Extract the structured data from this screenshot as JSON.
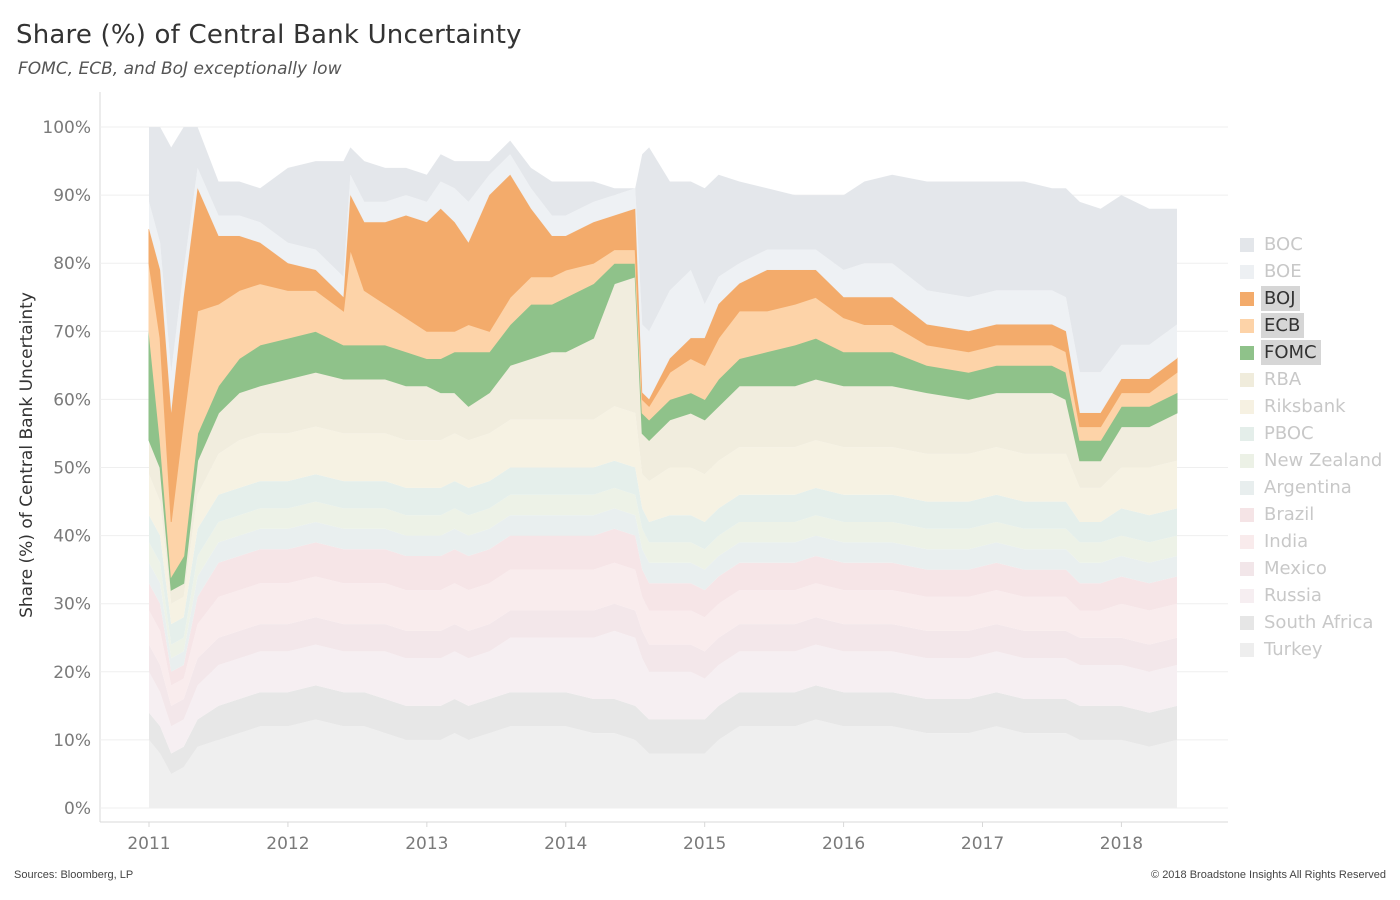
{
  "chart_data": {
    "type": "area",
    "stacked": true,
    "title": "Share (%) of Central Bank Uncertainty",
    "subtitle": "FOMC, ECB, and BoJ exceptionally low",
    "ylabel": "Share (%) of Central Bank Uncertainty",
    "xlabel": "",
    "ylim": [
      0,
      100
    ],
    "xlim": [
      2011.0,
      2018.4
    ],
    "grid": true,
    "legend_position": "right",
    "y_ticks": [
      "0%",
      "10%",
      "20%",
      "30%",
      "40%",
      "50%",
      "60%",
      "70%",
      "80%",
      "90%",
      "100%"
    ],
    "x_ticks": [
      "2011",
      "2012",
      "2013",
      "2014",
      "2015",
      "2016",
      "2017",
      "2018"
    ],
    "x": [
      2011.0,
      2011.08,
      2011.16,
      2011.25,
      2011.35,
      2011.5,
      2011.65,
      2011.8,
      2012.0,
      2012.2,
      2012.4,
      2012.45,
      2012.55,
      2012.7,
      2012.85,
      2013.0,
      2013.1,
      2013.2,
      2013.3,
      2013.45,
      2013.6,
      2013.75,
      2013.9,
      2014.0,
      2014.2,
      2014.35,
      2014.5,
      2014.55,
      2014.6,
      2014.75,
      2014.9,
      2015.0,
      2015.1,
      2015.25,
      2015.45,
      2015.65,
      2015.8,
      2016.0,
      2016.15,
      2016.35,
      2016.6,
      2016.9,
      2017.1,
      2017.3,
      2017.5,
      2017.6,
      2017.7,
      2017.85,
      2018.0,
      2018.2,
      2018.4
    ],
    "series": [
      {
        "name": "Turkey",
        "values": [
          10,
          8,
          5,
          6,
          9,
          10,
          11,
          12,
          12,
          13,
          12,
          12,
          12,
          11,
          10,
          10,
          10,
          11,
          10,
          11,
          12,
          12,
          12,
          12,
          11,
          11,
          10,
          9,
          8,
          8,
          8,
          8,
          10,
          12,
          12,
          12,
          13,
          12,
          12,
          12,
          11,
          11,
          12,
          11,
          11,
          11,
          10,
          10,
          10,
          9,
          10
        ]
      },
      {
        "name": "South Africa",
        "values": [
          4,
          4,
          3,
          3,
          4,
          5,
          5,
          5,
          5,
          5,
          5,
          5,
          5,
          5,
          5,
          5,
          5,
          5,
          5,
          5,
          5,
          5,
          5,
          5,
          5,
          5,
          5,
          5,
          5,
          5,
          5,
          5,
          5,
          5,
          5,
          5,
          5,
          5,
          5,
          5,
          5,
          5,
          5,
          5,
          5,
          5,
          5,
          5,
          5,
          5,
          5
        ]
      },
      {
        "name": "Russia",
        "values": [
          6,
          5,
          4,
          4,
          5,
          6,
          6,
          6,
          6,
          6,
          6,
          6,
          6,
          7,
          7,
          7,
          7,
          7,
          7,
          7,
          8,
          8,
          8,
          8,
          9,
          10,
          10,
          8,
          7,
          7,
          7,
          6,
          6,
          6,
          6,
          6,
          6,
          6,
          6,
          6,
          6,
          6,
          6,
          6,
          6,
          6,
          6,
          6,
          6,
          6,
          6
        ]
      },
      {
        "name": "Mexico",
        "values": [
          4,
          4,
          3,
          3,
          4,
          4,
          4,
          4,
          4,
          4,
          4,
          4,
          4,
          4,
          4,
          4,
          4,
          4,
          4,
          4,
          4,
          4,
          4,
          4,
          4,
          4,
          4,
          4,
          4,
          4,
          4,
          4,
          4,
          4,
          4,
          4,
          4,
          4,
          4,
          4,
          4,
          4,
          4,
          4,
          4,
          4,
          4,
          4,
          4,
          4,
          4
        ]
      },
      {
        "name": "India",
        "values": [
          5,
          5,
          3,
          3,
          5,
          6,
          6,
          6,
          6,
          6,
          6,
          6,
          6,
          6,
          6,
          6,
          6,
          6,
          6,
          6,
          6,
          6,
          6,
          6,
          6,
          6,
          6,
          5,
          5,
          5,
          5,
          5,
          5,
          5,
          5,
          5,
          5,
          5,
          5,
          5,
          5,
          5,
          5,
          5,
          5,
          5,
          4,
          4,
          5,
          5,
          5
        ]
      },
      {
        "name": "Brazil",
        "values": [
          4,
          4,
          2,
          2,
          4,
          5,
          5,
          5,
          5,
          5,
          5,
          5,
          5,
          5,
          5,
          5,
          5,
          5,
          5,
          5,
          5,
          5,
          5,
          5,
          5,
          5,
          5,
          4,
          4,
          4,
          4,
          4,
          4,
          4,
          4,
          4,
          4,
          4,
          4,
          4,
          4,
          4,
          4,
          4,
          4,
          4,
          4,
          4,
          4,
          4,
          4
        ]
      },
      {
        "name": "Argentina",
        "values": [
          3,
          3,
          2,
          2,
          3,
          3,
          3,
          3,
          3,
          3,
          3,
          3,
          3,
          3,
          3,
          3,
          3,
          3,
          3,
          3,
          3,
          3,
          3,
          3,
          3,
          3,
          3,
          3,
          3,
          3,
          3,
          3,
          3,
          3,
          3,
          3,
          3,
          3,
          3,
          3,
          3,
          3,
          3,
          3,
          3,
          3,
          3,
          3,
          3,
          3,
          3
        ]
      },
      {
        "name": "New Zealand",
        "values": [
          3,
          3,
          2,
          2,
          3,
          3,
          3,
          3,
          3,
          3,
          3,
          3,
          3,
          3,
          3,
          3,
          3,
          3,
          3,
          3,
          3,
          3,
          3,
          3,
          3,
          3,
          3,
          3,
          3,
          3,
          3,
          3,
          3,
          3,
          3,
          3,
          3,
          3,
          3,
          3,
          3,
          3,
          3,
          3,
          3,
          3,
          3,
          3,
          3,
          3,
          3
        ]
      },
      {
        "name": "PBOC",
        "values": [
          4,
          4,
          3,
          3,
          4,
          4,
          4,
          4,
          4,
          4,
          4,
          4,
          4,
          4,
          4,
          4,
          4,
          4,
          4,
          4,
          4,
          4,
          4,
          4,
          4,
          4,
          4,
          3,
          3,
          4,
          4,
          4,
          4,
          4,
          4,
          4,
          4,
          4,
          4,
          4,
          4,
          4,
          4,
          4,
          4,
          4,
          3,
          3,
          4,
          4,
          4
        ]
      },
      {
        "name": "Riksbank",
        "values": [
          6,
          5,
          3,
          3,
          5,
          6,
          7,
          7,
          7,
          7,
          7,
          7,
          7,
          7,
          7,
          7,
          7,
          7,
          7,
          7,
          7,
          7,
          7,
          7,
          7,
          8,
          8,
          5,
          6,
          7,
          7,
          7,
          7,
          7,
          7,
          7,
          7,
          7,
          7,
          7,
          7,
          7,
          7,
          7,
          7,
          7,
          5,
          5,
          6,
          7,
          7
        ]
      },
      {
        "name": "RBA",
        "values": [
          5,
          5,
          2,
          2,
          5,
          6,
          7,
          7,
          8,
          8,
          8,
          8,
          8,
          8,
          8,
          8,
          7,
          6,
          5,
          6,
          8,
          9,
          10,
          10,
          12,
          18,
          20,
          6,
          6,
          7,
          8,
          8,
          8,
          9,
          9,
          9,
          9,
          9,
          9,
          9,
          9,
          8,
          8,
          9,
          9,
          8,
          4,
          4,
          6,
          6,
          7
        ]
      },
      {
        "name": "FOMC",
        "values": [
          16,
          4,
          2,
          4,
          4,
          4,
          5,
          6,
          6,
          6,
          5,
          5,
          5,
          5,
          5,
          4,
          5,
          6,
          8,
          6,
          6,
          8,
          7,
          8,
          8,
          3,
          2,
          3,
          3,
          3,
          3,
          3,
          4,
          4,
          5,
          6,
          6,
          5,
          5,
          5,
          4,
          4,
          4,
          4,
          4,
          4,
          3,
          3,
          3,
          3,
          3
        ]
      },
      {
        "name": "ECB",
        "values": [
          10,
          15,
          8,
          20,
          18,
          12,
          10,
          9,
          7,
          6,
          5,
          14,
          8,
          6,
          5,
          4,
          4,
          3,
          4,
          3,
          4,
          4,
          4,
          4,
          3,
          2,
          2,
          2,
          2,
          4,
          5,
          5,
          6,
          7,
          6,
          6,
          6,
          5,
          4,
          4,
          3,
          3,
          3,
          3,
          3,
          3,
          2,
          2,
          2,
          2,
          3
        ]
      },
      {
        "name": "BOJ",
        "values": [
          5,
          10,
          16,
          18,
          18,
          10,
          8,
          6,
          4,
          3,
          2,
          8,
          10,
          12,
          15,
          16,
          18,
          16,
          12,
          20,
          18,
          10,
          6,
          5,
          6,
          5,
          6,
          1,
          1,
          2,
          3,
          4,
          5,
          4,
          6,
          5,
          4,
          3,
          4,
          4,
          3,
          3,
          3,
          3,
          3,
          3,
          2,
          2,
          2,
          2,
          2
        ]
      },
      {
        "name": "BOE",
        "values": [
          4,
          4,
          6,
          4,
          3,
          3,
          3,
          3,
          3,
          3,
          3,
          3,
          3,
          3,
          3,
          3,
          4,
          5,
          6,
          3,
          3,
          3,
          3,
          3,
          3,
          3,
          3,
          10,
          10,
          10,
          10,
          5,
          4,
          3,
          3,
          3,
          3,
          4,
          5,
          5,
          5,
          5,
          5,
          5,
          5,
          5,
          6,
          6,
          5,
          5,
          5
        ]
      },
      {
        "name": "BOC",
        "values": [
          11,
          17,
          33,
          21,
          6,
          5,
          5,
          5,
          11,
          13,
          17,
          4,
          6,
          5,
          4,
          4,
          4,
          4,
          6,
          2,
          2,
          3,
          5,
          5,
          3,
          1,
          0,
          25,
          27,
          16,
          13,
          17,
          15,
          12,
          9,
          8,
          8,
          11,
          12,
          13,
          16,
          17,
          16,
          16,
          15,
          16,
          25,
          24,
          22,
          20,
          17
        ]
      }
    ],
    "colors": {
      "BOC": "#e3e6ea",
      "BOE": "#edf0f3",
      "BOJ": "#f3ab6b",
      "ECB": "#fdd3a8",
      "FOMC": "#8fc28a",
      "RBA": "#f0ecdc",
      "Riksbank": "#f6f1e2",
      "PBOC": "#e4eeea",
      "New Zealand": "#ecf1e6",
      "Argentina": "#e8eeee",
      "Brazil": "#f5e4e6",
      "India": "#f9ebec",
      "Mexico": "#f2e6e9",
      "Russia": "#f6eef1",
      "South Africa": "#e6e6e6",
      "Turkey": "#eeeeee"
    },
    "highlighted": [
      "BOJ",
      "ECB",
      "FOMC"
    ],
    "legend_order": [
      "BOC",
      "BOE",
      "BOJ",
      "ECB",
      "FOMC",
      "RBA",
      "Riksbank",
      "PBOC",
      "New Zealand",
      "Argentina",
      "Brazil",
      "India",
      "Mexico",
      "Russia",
      "South Africa",
      "Turkey"
    ]
  },
  "footer": {
    "sources": "Sources: Bloomberg, LP",
    "copyright": "© 2018 Broadstone Insights All Rights Reserved"
  }
}
